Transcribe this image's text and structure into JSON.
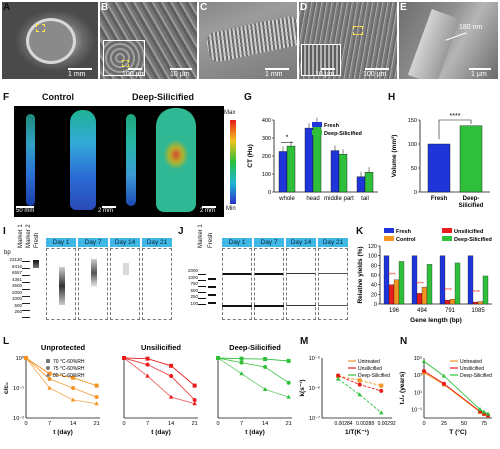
{
  "panel_labels": {
    "A": "A",
    "B": "B",
    "C": "C",
    "D": "D",
    "E": "E",
    "F": "F",
    "G": "G",
    "H": "H",
    "I": "I",
    "J": "J",
    "K": "K",
    "L": "L",
    "M": "M",
    "N": "N"
  },
  "sem": {
    "a_scale": "1 mm",
    "b_scale_left": "100 µm",
    "b_scale_right": "10 µm",
    "c_scale": "1 mm",
    "d_scale_left": "10 µm",
    "d_scale_right": "100 µm",
    "e_scale": "1 µm",
    "e_thickness": "180 nm"
  },
  "panel_f": {
    "control": "Control",
    "deep": "Deep-Silicified",
    "scale_left": "50 mm",
    "scale_mid": "2 mm",
    "scale_right": "2 mm",
    "legend_max": "Max",
    "legend_min": "Min"
  },
  "panel_g": {
    "ylabel": "CT (Hu)",
    "legend": [
      "Fresh",
      "Deep-Silicified"
    ],
    "colors": [
      "#1f35d9",
      "#2fbf3b"
    ]
  },
  "panel_h": {
    "ylabel": "Volume (mm³)",
    "sig": "****"
  },
  "panel_i": {
    "days": [
      "Day 1",
      "Day 7",
      "Day 14",
      "Day 21"
    ],
    "markers": [
      "Marker 1",
      "Marker 2",
      "Fresh"
    ],
    "bp_unit": "bp",
    "bp_labels": [
      "23130",
      "9416",
      "6557",
      "4361",
      "3500",
      "2000",
      "1000",
      "500",
      "250"
    ]
  },
  "panel_j": {
    "days": [
      "Day 1",
      "Day 7",
      "Day 14",
      "Day 21"
    ],
    "markers": [
      "Marker 1",
      "Fresh"
    ],
    "bp_labels": [
      "2000",
      "1000",
      "750",
      "500",
      "250",
      "100"
    ]
  },
  "panel_k": {
    "ylabel": "Relative yields (%)",
    "xlabel": "Gene length (bp)",
    "legend": [
      "Fresh",
      "Unsilicified",
      "Control",
      "Deep-Silicified"
    ],
    "colors": [
      "#1f35d9",
      "#e81c1c",
      "#f39322",
      "#2fbf3b"
    ],
    "sig": "****"
  },
  "panel_l": {
    "titles": [
      "Unprotected",
      "Unsilicified",
      "Deep-Silicified"
    ],
    "ylabel": "c/c₀",
    "xlabel": "t (day)",
    "legend": [
      "70 °C-60%RH",
      "75 °C-60%RH",
      "80 °C-60%RH"
    ]
  },
  "panel_m": {
    "ylabel": "k(s⁻¹)",
    "xlabel": "1/T(K⁻¹)",
    "legend": [
      "Untreated",
      "Unsilicified",
      "Deep-Silicified"
    ]
  },
  "panel_n": {
    "ylabel": "t₁/₂ (years)",
    "xlabel": "T (°C)",
    "legend": [
      "Untreated",
      "Unsilicified",
      "Deep-Silicified"
    ]
  },
  "chart_data": [
    {
      "id": "G",
      "type": "bar",
      "categories": [
        "whole",
        "head",
        "middle part",
        "tail"
      ],
      "ylabel": "CT (Hu)",
      "ylim": [
        0,
        400
      ],
      "yticks": [
        0,
        100,
        200,
        300,
        400
      ],
      "series": [
        {
          "name": "Fresh",
          "values": [
            225,
            355,
            230,
            85
          ],
          "color": "#1f35d9"
        },
        {
          "name": "Deep-Silicified",
          "values": [
            255,
            385,
            210,
            110
          ],
          "color": "#2fbf3b"
        }
      ],
      "annotations": [
        "*"
      ]
    },
    {
      "id": "H",
      "type": "bar",
      "categories": [
        "Fresh",
        "Deep-Silicified"
      ],
      "ylabel": "Volume (mm³)",
      "ylim": [
        0,
        150
      ],
      "yticks": [
        0,
        50,
        100,
        150
      ],
      "values": [
        100,
        138
      ],
      "colors": [
        "#1f35d9",
        "#2fbf3b"
      ],
      "annotations": [
        "****"
      ]
    },
    {
      "id": "K",
      "type": "bar",
      "categories": [
        "196",
        "494",
        "791",
        "1085"
      ],
      "ylabel": "Relative yields (%)",
      "xlabel": "Gene length (bp)",
      "ylim": [
        0,
        120
      ],
      "yticks": [
        0,
        20,
        40,
        60,
        80,
        100,
        120
      ],
      "series": [
        {
          "name": "Fresh",
          "values": [
            100,
            100,
            100,
            100
          ],
          "color": "#1f35d9"
        },
        {
          "name": "Unsilicified",
          "values": [
            40,
            22,
            8,
            4
          ],
          "color": "#e81c1c"
        },
        {
          "name": "Control",
          "values": [
            50,
            35,
            10,
            5
          ],
          "color": "#f39322"
        },
        {
          "name": "Deep-Silicified",
          "values": [
            88,
            82,
            85,
            58
          ],
          "color": "#2fbf3b"
        }
      ],
      "annotations": [
        "****",
        "****",
        "****",
        "****"
      ]
    },
    {
      "id": "L1",
      "type": "line",
      "title": "Unprotected",
      "xlabel": "t (day)",
      "ylabel": "c/c₀",
      "ylog": true,
      "ylim": [
        0.01,
        1
      ],
      "xlim": [
        0,
        22
      ],
      "xticks": [
        0,
        7,
        14,
        21
      ],
      "series": [
        {
          "name": "70 °C-60%RH",
          "x": [
            0,
            7,
            14,
            21
          ],
          "y": [
            1,
            0.3,
            0.22,
            0.12
          ]
        },
        {
          "name": "75 °C-60%RH",
          "x": [
            0,
            7,
            14,
            21
          ],
          "y": [
            1,
            0.2,
            0.1,
            0.05
          ]
        },
        {
          "name": "80 °C-60%RH",
          "x": [
            0,
            7,
            14,
            21
          ],
          "y": [
            1,
            0.1,
            0.04,
            0.03
          ]
        }
      ]
    },
    {
      "id": "L2",
      "type": "line",
      "title": "Unsilicified",
      "xlabel": "t (day)",
      "ylog": true,
      "ylim": [
        0.01,
        1
      ],
      "xlim": [
        0,
        22
      ],
      "xticks": [
        0,
        7,
        14,
        21
      ],
      "series": [
        {
          "name": "70 °C-60%RH",
          "x": [
            0,
            7,
            14,
            21
          ],
          "y": [
            1,
            0.95,
            0.55,
            0.12
          ]
        },
        {
          "name": "75 °C-60%RH",
          "x": [
            0,
            7,
            14,
            21
          ],
          "y": [
            1,
            0.6,
            0.25,
            0.04
          ]
        },
        {
          "name": "80 °C-60%RH",
          "x": [
            0,
            7,
            14,
            21
          ],
          "y": [
            1,
            0.25,
            0.05,
            0.03
          ]
        }
      ]
    },
    {
      "id": "L3",
      "type": "line",
      "title": "Deep-Silicified",
      "xlabel": "t (day)",
      "ylog": true,
      "ylim": [
        0.01,
        1
      ],
      "xlim": [
        0,
        22
      ],
      "xticks": [
        0,
        7,
        14,
        21
      ],
      "series": [
        {
          "name": "70 °C-60%RH",
          "x": [
            0,
            7,
            14,
            21
          ],
          "y": [
            1,
            0.95,
            0.92,
            0.8
          ]
        },
        {
          "name": "75 °C-60%RH",
          "x": [
            0,
            7,
            14,
            21
          ],
          "y": [
            1,
            0.7,
            0.5,
            0.15
          ]
        },
        {
          "name": "80 °C-60%RH",
          "x": [
            0,
            7,
            14,
            21
          ],
          "y": [
            1,
            0.3,
            0.09,
            0.05
          ]
        }
      ]
    },
    {
      "id": "M",
      "type": "line",
      "xlabel": "1/T(K⁻¹)",
      "ylabel": "k(s⁻¹)",
      "ylog": true,
      "ylim": [
        1e-07,
        1e-05
      ],
      "xlim": [
        0.0028,
        0.00293
      ],
      "xticks": [
        0.00284,
        0.00288,
        0.00292
      ],
      "series": [
        {
          "name": "Untreated",
          "x": [
            0.00283,
            0.00287,
            0.00291
          ],
          "y": [
            2.5e-06,
            1.8e-06,
            1.2e-06
          ],
          "color": "#f39322"
        },
        {
          "name": "Unsilicified",
          "x": [
            0.00283,
            0.00287,
            0.00291
          ],
          "y": [
            2.6e-06,
            1.3e-06,
            8e-07
          ],
          "color": "#e81c1c"
        },
        {
          "name": "Deep-Silicified",
          "x": [
            0.00283,
            0.00287,
            0.00291
          ],
          "y": [
            2e-06,
            6e-07,
            1.5e-07
          ],
          "color": "#2fbf3b"
        }
      ]
    },
    {
      "id": "N",
      "type": "line",
      "xlabel": "T (°C)",
      "ylabel": "t₁/₂ (years)",
      "ylog": true,
      "ylim": [
        0.01,
        100000.0
      ],
      "xlim": [
        0,
        85
      ],
      "xticks": [
        0,
        25,
        50,
        75
      ],
      "series": [
        {
          "name": "Untreated",
          "x": [
            0,
            25,
            70,
            75,
            80
          ],
          "y": [
            2000,
            80,
            0.05,
            0.03,
            0.02
          ],
          "color": "#f39322"
        },
        {
          "name": "Unsilicified",
          "x": [
            0,
            25,
            70,
            75,
            80
          ],
          "y": [
            3000,
            100,
            0.06,
            0.03,
            0.02
          ],
          "color": "#e81c1c"
        },
        {
          "name": "Deep-Silicified",
          "x": [
            0,
            25,
            70,
            75,
            80
          ],
          "y": [
            40000,
            800,
            0.1,
            0.05,
            0.03
          ],
          "color": "#2fbf3b"
        }
      ]
    }
  ]
}
